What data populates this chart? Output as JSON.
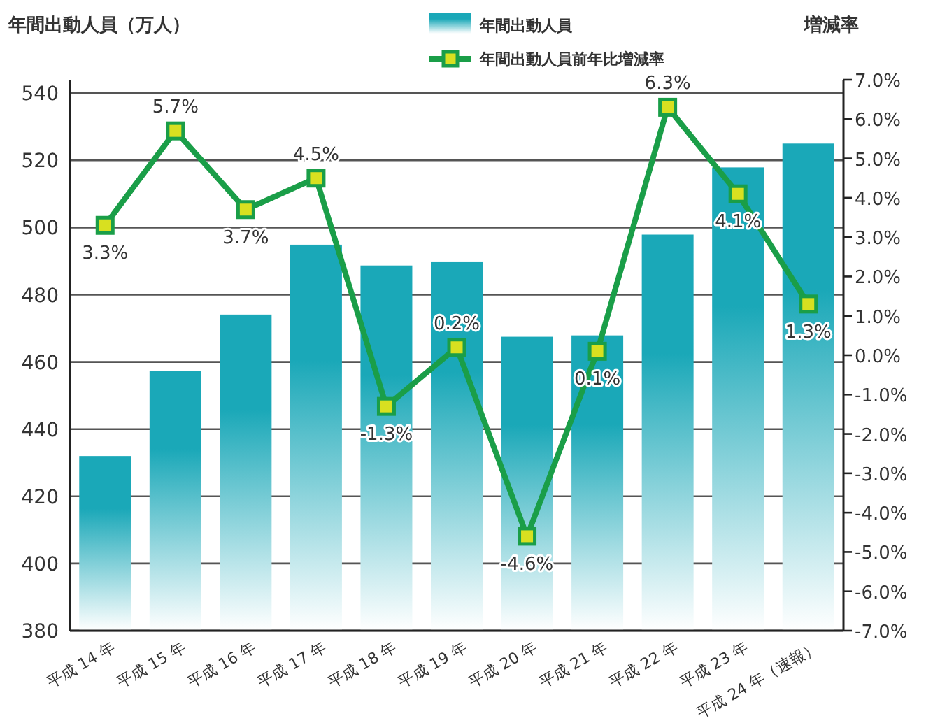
{
  "chart_data": {
    "type": "bar",
    "ylabel": "年間出動人員（万人）",
    "y2label": "増減率",
    "categories": [
      "平成 14 年",
      "平成 15 年",
      "平成 16 年",
      "平成 17 年",
      "平成 18 年",
      "平成 19 年",
      "平成 20 年",
      "平成 21 年",
      "平成 22 年",
      "平成 23 年",
      "平成 24 年（速報）"
    ],
    "series": [
      {
        "name": "年間出動人員",
        "color": "#1aa8b8",
        "values": [
          432,
          457.4,
          474.1,
          494.9,
          488.7,
          489.9,
          467.5,
          467.9,
          497.9,
          517.9,
          525
        ]
      },
      {
        "name": "年間出動人員前年比増減率",
        "type": "line",
        "axis": "y2",
        "color": "#1a9e48",
        "marker": "square",
        "values": [
          3.3,
          5.7,
          3.7,
          4.5,
          -1.3,
          0.2,
          -4.6,
          0.1,
          6.3,
          4.1,
          1.3
        ],
        "value_labels": [
          "3.3%",
          "5.7%",
          "3.7%",
          "4.5%",
          "-1.3%",
          "0.2%",
          "-4.6%",
          "0.1%",
          "6.3%",
          "4.1%",
          "1.3%"
        ]
      }
    ],
    "ylim": [
      380,
      544
    ],
    "yticks": [
      380,
      400,
      420,
      440,
      460,
      480,
      500,
      520,
      540
    ],
    "y2lim": [
      -7,
      7
    ],
    "y2ticks": [
      {
        "value": -7,
        "label": "-7.0%"
      },
      {
        "value": -6,
        "label": "-6.0%"
      },
      {
        "value": -5,
        "label": "-5.0%"
      },
      {
        "value": -4,
        "label": "-4.0%"
      },
      {
        "value": -3,
        "label": "-3.0%"
      },
      {
        "value": -2,
        "label": "-2.0%"
      },
      {
        "value": -1,
        "label": "-1.0%"
      },
      {
        "value": 0,
        "label": "0.0%"
      },
      {
        "value": 1,
        "label": "1.0%"
      },
      {
        "value": 2,
        "label": "2.0%"
      },
      {
        "value": 3,
        "label": "3.0%"
      },
      {
        "value": 4,
        "label": "4.0%"
      },
      {
        "value": 5,
        "label": "5.0%"
      },
      {
        "value": 6,
        "label": "6.0%"
      },
      {
        "value": 7,
        "label": "7.0%"
      }
    ],
    "grid": "y",
    "legend": "top"
  }
}
